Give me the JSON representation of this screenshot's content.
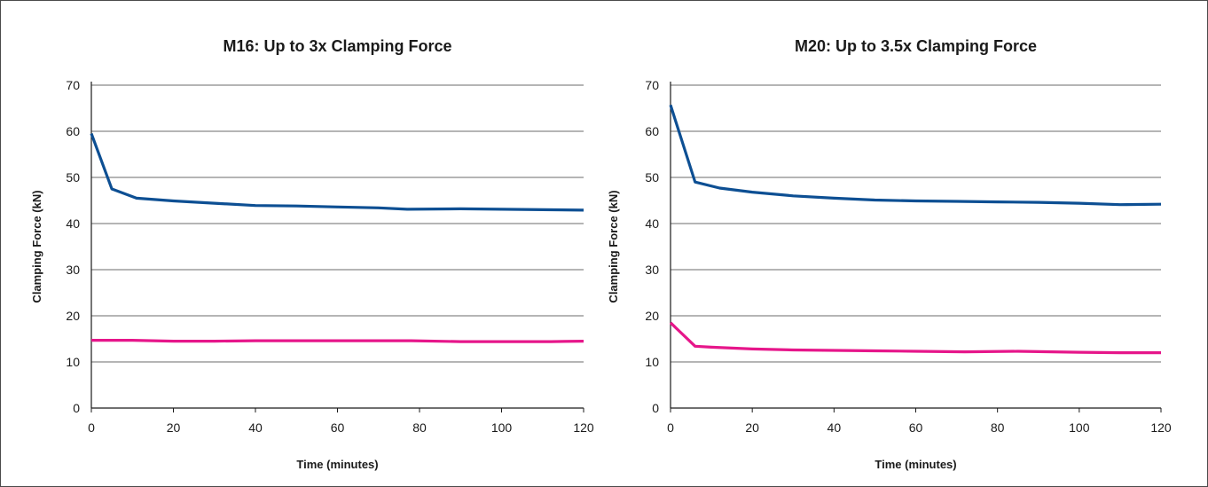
{
  "chart_data": [
    {
      "type": "line",
      "title": "M16: Up to 3x Clamping Force",
      "xlabel": "Time (minutes)",
      "ylabel": "Clamping Force (kN)",
      "xlim": [
        0,
        120
      ],
      "ylim": [
        0,
        70
      ],
      "x_ticks": [
        0,
        20,
        40,
        60,
        80,
        100,
        120
      ],
      "y_ticks": [
        0,
        10,
        20,
        30,
        40,
        50,
        60,
        70
      ],
      "grid": "horizontal",
      "series": [
        {
          "color": "#0d4f93",
          "points": [
            [
              0,
              59.5
            ],
            [
              5,
              47.5
            ],
            [
              11,
              45.5
            ],
            [
              20,
              44.9
            ],
            [
              30,
              44.4
            ],
            [
              40,
              43.9
            ],
            [
              50,
              43.8
            ],
            [
              60,
              43.6
            ],
            [
              70,
              43.4
            ],
            [
              77,
              43.1
            ],
            [
              90,
              43.2
            ],
            [
              100,
              43.1
            ],
            [
              110,
              43.0
            ],
            [
              120,
              42.9
            ]
          ]
        },
        {
          "color": "#e6168a",
          "points": [
            [
              0,
              14.7
            ],
            [
              10,
              14.7
            ],
            [
              20,
              14.5
            ],
            [
              30,
              14.5
            ],
            [
              40,
              14.6
            ],
            [
              60,
              14.6
            ],
            [
              78,
              14.6
            ],
            [
              90,
              14.4
            ],
            [
              100,
              14.4
            ],
            [
              112,
              14.4
            ],
            [
              120,
              14.5
            ]
          ]
        }
      ]
    },
    {
      "type": "line",
      "title": "M20: Up to 3.5x Clamping Force",
      "xlabel": "Time (minutes)",
      "ylabel": "Clamping Force (kN)",
      "xlim": [
        0,
        120
      ],
      "ylim": [
        0,
        70
      ],
      "x_ticks": [
        0,
        20,
        40,
        60,
        80,
        100,
        120
      ],
      "y_ticks": [
        0,
        10,
        20,
        30,
        40,
        50,
        60,
        70
      ],
      "grid": "horizontal",
      "series": [
        {
          "color": "#0d4f93",
          "points": [
            [
              0,
              65.7
            ],
            [
              6,
              49.0
            ],
            [
              12,
              47.7
            ],
            [
              20,
              46.8
            ],
            [
              30,
              46.0
            ],
            [
              40,
              45.5
            ],
            [
              50,
              45.1
            ],
            [
              60,
              44.9
            ],
            [
              70,
              44.8
            ],
            [
              80,
              44.7
            ],
            [
              90,
              44.6
            ],
            [
              100,
              44.4
            ],
            [
              110,
              44.1
            ],
            [
              120,
              44.2
            ]
          ]
        },
        {
          "color": "#e6168a",
          "points": [
            [
              0,
              18.5
            ],
            [
              6,
              13.4
            ],
            [
              10,
              13.2
            ],
            [
              20,
              12.8
            ],
            [
              30,
              12.6
            ],
            [
              40,
              12.5
            ],
            [
              50,
              12.4
            ],
            [
              60,
              12.3
            ],
            [
              72,
              12.2
            ],
            [
              85,
              12.3
            ],
            [
              100,
              12.1
            ],
            [
              110,
              12.0
            ],
            [
              120,
              12.0
            ]
          ]
        }
      ]
    }
  ]
}
